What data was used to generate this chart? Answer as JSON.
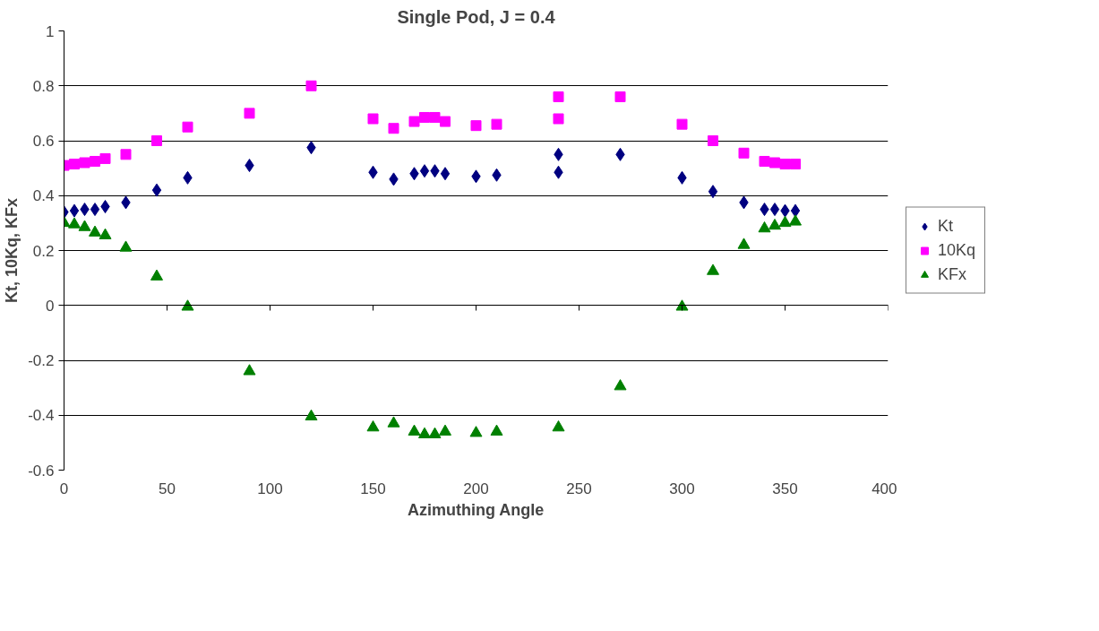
{
  "chart_data": {
    "type": "scatter",
    "title": "Single Pod, J = 0.4",
    "xlabel": "Azimuthing Angle",
    "ylabel": "Kt, 10Kq, KFx",
    "xlim": [
      0,
      400
    ],
    "xticks": [
      0,
      50,
      100,
      150,
      200,
      250,
      300,
      350,
      400
    ],
    "ylim": [
      -0.6,
      1
    ],
    "yticks": [
      -0.6,
      -0.4,
      -0.2,
      0,
      0.2,
      0.4,
      0.6,
      0.8,
      1
    ],
    "grid": "y",
    "legend": "right",
    "series": [
      {
        "name": "Kt",
        "color": "#000080",
        "marker": "diamond",
        "x": [
          0,
          5,
          10,
          15,
          20,
          30,
          45,
          60,
          90,
          120,
          150,
          160,
          170,
          175,
          180,
          185,
          200,
          210,
          240,
          240,
          270,
          300,
          315,
          330,
          340,
          345,
          350,
          355
        ],
        "values": [
          0.34,
          0.345,
          0.35,
          0.35,
          0.36,
          0.375,
          0.42,
          0.465,
          0.51,
          0.575,
          0.485,
          0.46,
          0.48,
          0.49,
          0.49,
          0.48,
          0.47,
          0.475,
          0.55,
          0.485,
          0.55,
          0.465,
          0.415,
          0.375,
          0.35,
          0.35,
          0.345,
          0.345
        ]
      },
      {
        "name": "10Kq",
        "color": "#ff00ff",
        "marker": "square",
        "x": [
          0,
          5,
          10,
          15,
          20,
          30,
          45,
          60,
          90,
          120,
          150,
          160,
          170,
          175,
          180,
          185,
          200,
          210,
          240,
          240,
          270,
          300,
          315,
          330,
          340,
          345,
          350,
          355
        ],
        "values": [
          0.51,
          0.515,
          0.52,
          0.525,
          0.535,
          0.55,
          0.6,
          0.65,
          0.7,
          0.8,
          0.68,
          0.645,
          0.67,
          0.685,
          0.685,
          0.67,
          0.655,
          0.66,
          0.76,
          0.68,
          0.76,
          0.66,
          0.6,
          0.555,
          0.525,
          0.52,
          0.515,
          0.515
        ]
      },
      {
        "name": "KFx",
        "color": "#008000",
        "marker": "triangle",
        "x": [
          0,
          5,
          10,
          15,
          20,
          30,
          45,
          60,
          90,
          120,
          150,
          160,
          170,
          175,
          180,
          185,
          200,
          210,
          240,
          270,
          300,
          315,
          330,
          340,
          345,
          350,
          355
        ],
        "values": [
          0.3,
          0.295,
          0.285,
          0.265,
          0.255,
          0.21,
          0.105,
          -0.005,
          -0.24,
          -0.405,
          -0.445,
          -0.43,
          -0.46,
          -0.47,
          -0.47,
          -0.46,
          -0.465,
          -0.46,
          -0.445,
          -0.295,
          -0.005,
          0.125,
          0.22,
          0.28,
          0.29,
          0.3,
          0.305
        ]
      }
    ]
  }
}
